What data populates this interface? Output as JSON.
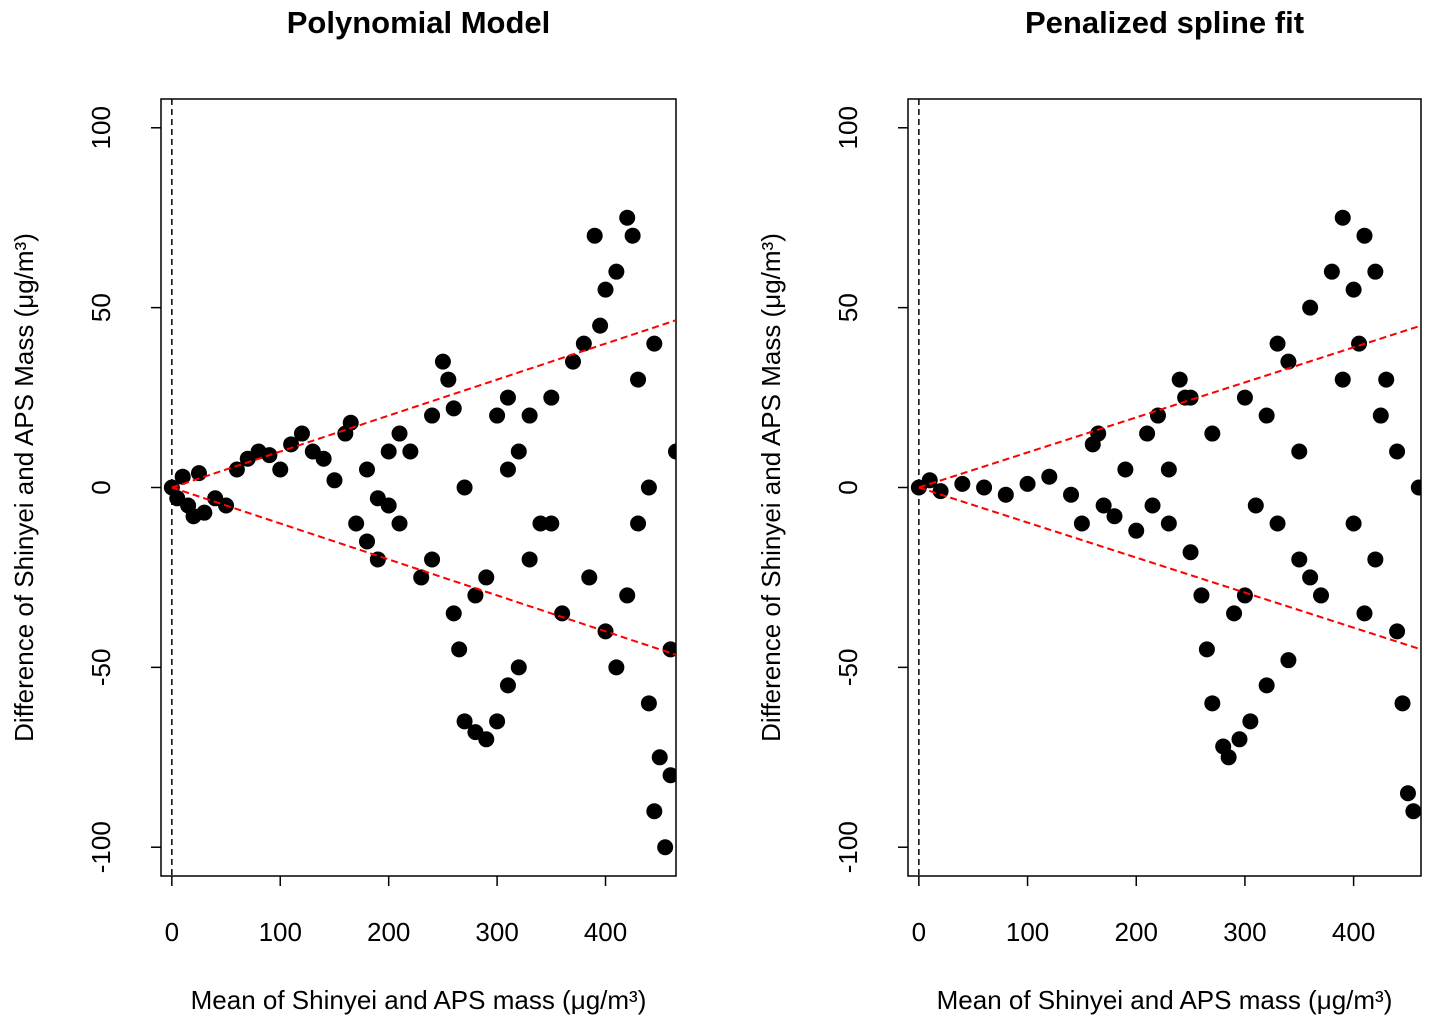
{
  "chart_data": [
    {
      "type": "scatter",
      "title": "Polynomial Model",
      "x_label": "Mean of Shinyei and APS mass (μg/m³)",
      "y_label": "Difference of Shinyei and APS Mass (μg/m³)",
      "xlim": [
        -10,
        465
      ],
      "ylim": [
        -108,
        108
      ],
      "xticks": [
        0,
        100,
        200,
        300,
        400
      ],
      "yticks": [
        -100,
        -50,
        0,
        50,
        100
      ],
      "color": "#000000",
      "x": [
        0,
        5,
        10,
        15,
        20,
        25,
        30,
        40,
        50,
        60,
        70,
        80,
        90,
        100,
        110,
        120,
        130,
        140,
        150,
        160,
        165,
        170,
        180,
        190,
        200,
        210,
        220,
        230,
        240,
        250,
        255,
        260,
        265,
        270,
        280,
        290,
        300,
        310,
        320,
        300,
        310,
        320,
        330,
        340,
        350,
        360,
        370,
        380,
        390,
        400,
        410,
        420,
        425,
        430,
        420,
        410,
        400,
        430,
        440,
        440,
        445,
        450,
        455,
        460,
        465,
        350,
        280,
        290,
        240,
        200,
        210,
        180,
        190,
        260,
        330,
        445,
        460,
        395,
        385,
        270,
        310
      ],
      "y": [
        0,
        -3,
        3,
        -5,
        -8,
        4,
        -7,
        -3,
        -5,
        5,
        8,
        10,
        9,
        5,
        12,
        15,
        10,
        8,
        2,
        15,
        18,
        -10,
        -15,
        -20,
        -5,
        15,
        10,
        -25,
        20,
        35,
        30,
        -35,
        -45,
        -65,
        -68,
        -70,
        -65,
        -55,
        -50,
        20,
        25,
        10,
        -20,
        -10,
        25,
        -35,
        35,
        40,
        70,
        55,
        60,
        75,
        70,
        30,
        -30,
        -50,
        -40,
        -10,
        0,
        -60,
        -90,
        -75,
        -100,
        -80,
        10,
        -10,
        -30,
        -25,
        -20,
        10,
        -10,
        5,
        -3,
        22,
        20,
        40,
        -45,
        45,
        -25,
        0,
        5
      ],
      "lines": [
        {
          "x": [
            0,
            465
          ],
          "y": [
            0,
            46.5
          ],
          "color": "#ff0000"
        },
        {
          "x": [
            0,
            465
          ],
          "y": [
            0,
            -46.5
          ],
          "color": "#ff0000"
        }
      ],
      "vline": 0
    },
    {
      "type": "scatter",
      "title": "Penalized spline fit",
      "x_label": "Mean of Shinyei and APS mass (μg/m³)",
      "y_label": "Difference of Shinyei and APS Mass (μg/m³)",
      "xlim": [
        -10,
        462
      ],
      "ylim": [
        -108,
        108
      ],
      "xticks": [
        0,
        100,
        200,
        300,
        400
      ],
      "yticks": [
        -100,
        -50,
        0,
        50,
        100
      ],
      "color": "#000000",
      "x": [
        0,
        10,
        20,
        40,
        60,
        80,
        100,
        120,
        140,
        150,
        160,
        165,
        170,
        180,
        190,
        200,
        210,
        220,
        230,
        240,
        245,
        250,
        260,
        265,
        270,
        280,
        285,
        295,
        305,
        320,
        340,
        300,
        310,
        320,
        330,
        340,
        350,
        360,
        370,
        380,
        390,
        400,
        405,
        410,
        420,
        425,
        420,
        410,
        400,
        430,
        440,
        445,
        450,
        455,
        460,
        350,
        330,
        290,
        230,
        215,
        390,
        440,
        270,
        300,
        250,
        360
      ],
      "y": [
        0,
        2,
        -1,
        1,
        0,
        -2,
        1,
        3,
        -2,
        -10,
        12,
        15,
        -5,
        -8,
        5,
        -12,
        15,
        20,
        -10,
        30,
        25,
        -18,
        -30,
        -45,
        -60,
        -72,
        -75,
        -70,
        -65,
        -55,
        -48,
        -30,
        -5,
        20,
        40,
        35,
        10,
        50,
        -30,
        60,
        75,
        55,
        40,
        70,
        60,
        20,
        -20,
        -35,
        -10,
        30,
        -40,
        -60,
        -85,
        -90,
        0,
        -20,
        -10,
        -35,
        5,
        -5,
        30,
        10,
        15,
        25,
        25,
        -25
      ],
      "lines": [
        {
          "x": [
            0,
            462
          ],
          "y": [
            0,
            45
          ],
          "color": "#ff0000"
        },
        {
          "x": [
            0,
            462
          ],
          "y": [
            0,
            -45
          ],
          "color": "#ff0000"
        }
      ],
      "vline": 0
    }
  ]
}
